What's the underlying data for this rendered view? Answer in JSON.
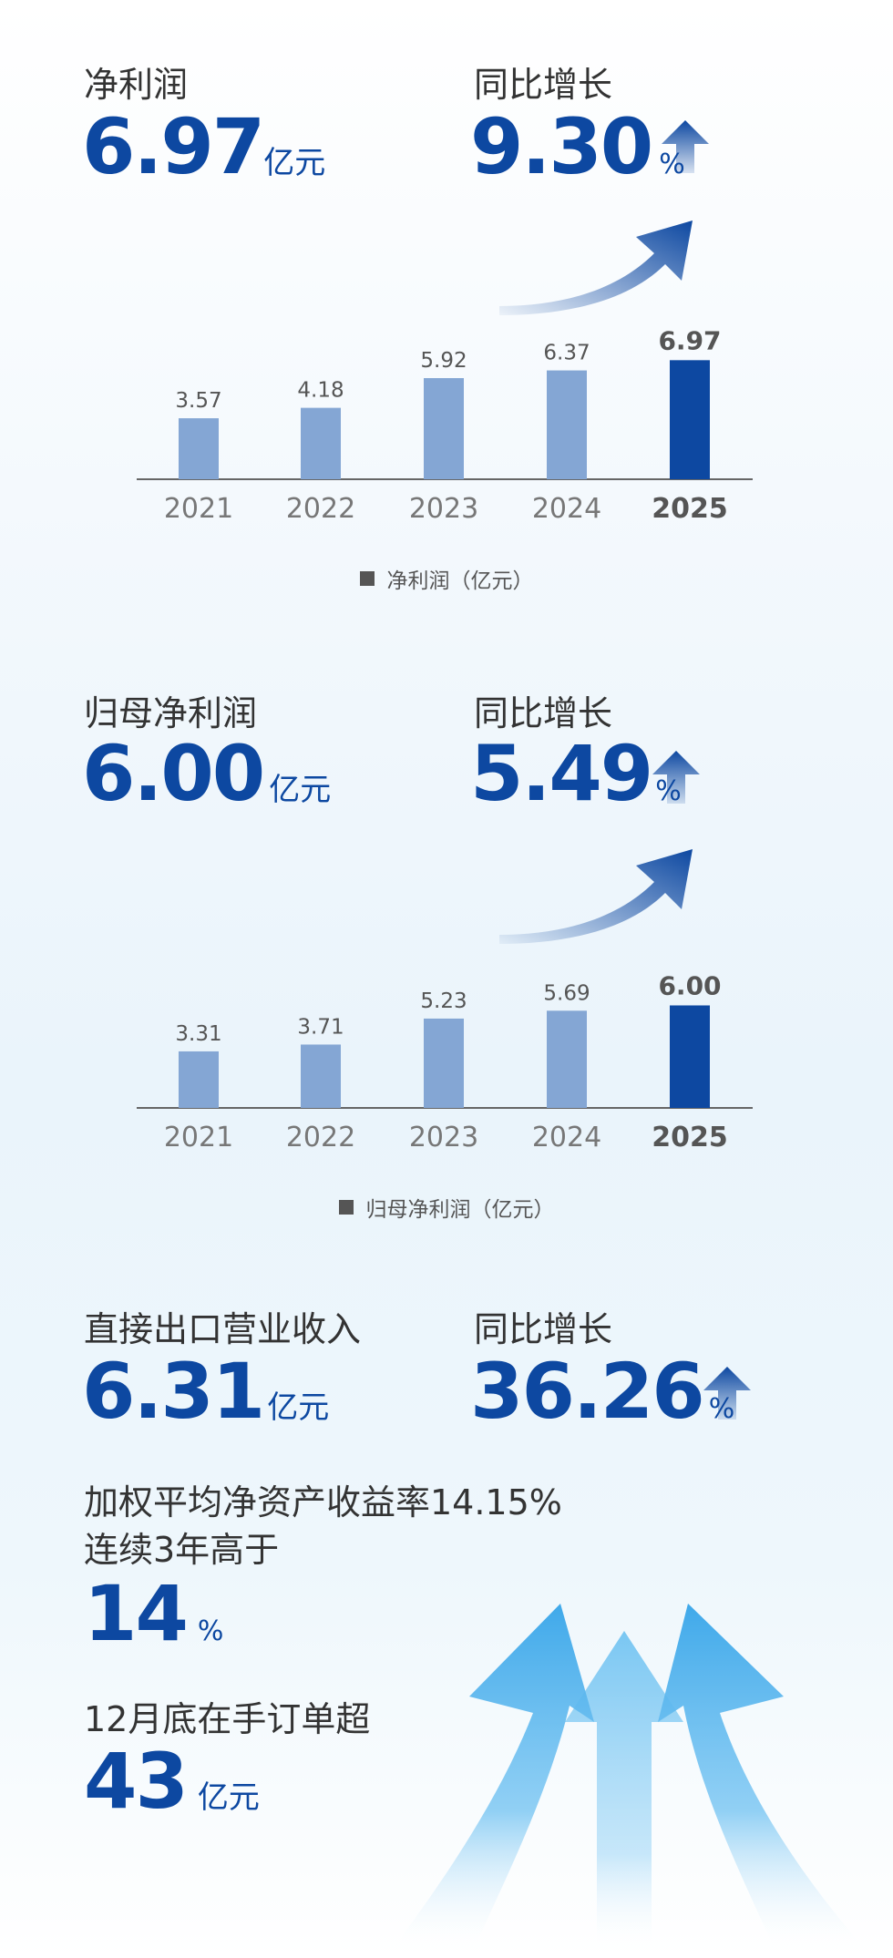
{
  "sections": [
    {
      "metric_label": "净利润",
      "metric_value": "6.97",
      "metric_unit": "亿元",
      "growth_label": "同比增长",
      "growth_value": "9.30",
      "growth_unit": "%"
    },
    {
      "metric_label": "归母净利润",
      "metric_value": "6.00",
      "metric_unit": "亿元",
      "growth_label": "同比增长",
      "growth_value": "5.49",
      "growth_unit": "%"
    },
    {
      "metric_label": "直接出口营业收入",
      "metric_value": "6.31",
      "metric_unit": "亿元",
      "growth_label": "同比增长",
      "growth_value": "36.26",
      "growth_unit": "%"
    }
  ],
  "roe": {
    "line1": "加权平均净资产收益率14.15%",
    "line2": "连续3年高于",
    "value": "14",
    "unit": "%"
  },
  "orders": {
    "label": "12月底在手订单超",
    "value": "43",
    "unit": "亿元"
  },
  "colors": {
    "accent": "#0d48a1",
    "bar_light": "#84a6d4",
    "bar_dark": "#0d48a1",
    "baseline": "#666666",
    "sky_arrow": "#5bb8ee"
  },
  "chart_data": [
    {
      "type": "bar",
      "categories": [
        "2021",
        "2022",
        "2023",
        "2024",
        "2025"
      ],
      "series": [
        {
          "name": "净利润（亿元）",
          "values": [
            3.57,
            4.18,
            5.92,
            6.37,
            6.97
          ]
        }
      ],
      "value_labels": [
        "3.57",
        "4.18",
        "5.92",
        "6.37",
        "6.97"
      ],
      "highlight_index": 4,
      "legend": "净利润（亿元）",
      "legend_position": "bottom-center",
      "ylim": [
        0,
        8
      ]
    },
    {
      "type": "bar",
      "categories": [
        "2021",
        "2022",
        "2023",
        "2024",
        "2025"
      ],
      "series": [
        {
          "name": "归母净利润（亿元）",
          "values": [
            3.31,
            3.71,
            5.23,
            5.69,
            6.0
          ]
        }
      ],
      "value_labels": [
        "3.31",
        "3.71",
        "5.23",
        "5.69",
        "6.00"
      ],
      "highlight_index": 4,
      "legend": "归母净利润（亿元）",
      "legend_position": "bottom-center",
      "ylim": [
        0,
        8
      ]
    }
  ]
}
